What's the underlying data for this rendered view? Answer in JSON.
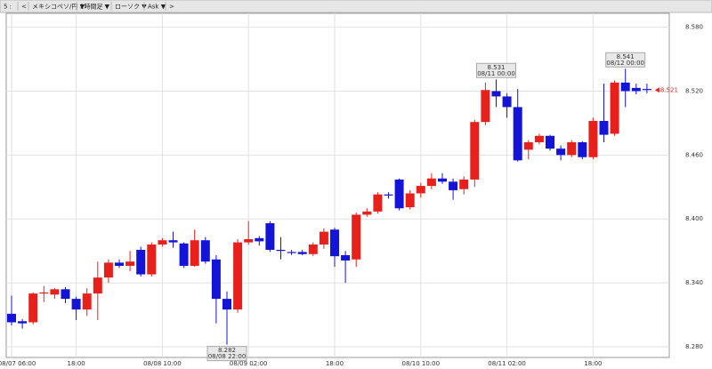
{
  "toolbar": [
    "5 :",
    "<",
    "メキシコペソ/円 ▼",
    "2時間足 ▼",
    "ローソク ▼",
    "Ask ▼",
    ">"
  ],
  "chart_data": {
    "type": "candlestick",
    "up_color": "#e8201c",
    "down_color": "#1414d8",
    "last_color": "#e8201c",
    "categories": [
      "08/07 06:00",
      null,
      null,
      null,
      null,
      null,
      "18:00",
      null,
      null,
      null,
      null,
      null,
      null,
      null,
      "08/08 10:00",
      null,
      null,
      null,
      null,
      null,
      null,
      null,
      "08/09 02:00",
      null,
      null,
      null,
      null,
      null,
      null,
      null,
      "18:00",
      null,
      null,
      null,
      null,
      null,
      null,
      null,
      "08/10 10:00",
      null,
      null,
      null,
      null,
      null,
      null,
      null,
      "08/11 02:00",
      null,
      null,
      null,
      null,
      null,
      null,
      null,
      "18:00",
      null,
      null,
      null,
      null,
      null
    ],
    "open": [
      8.311,
      8.304,
      8.303,
      8.33,
      8.329,
      8.334,
      8.325,
      8.315,
      8.33,
      8.345,
      8.359,
      8.356,
      8.371,
      8.348,
      8.376,
      8.38,
      8.377,
      8.356,
      8.38,
      8.362,
      8.325,
      8.315,
      8.378,
      8.382,
      8.396,
      8.371,
      8.369,
      8.369,
      8.367,
      8.376,
      8.39,
      8.366,
      8.362,
      8.404,
      8.407,
      8.423,
      8.437,
      8.411,
      8.424,
      8.431,
      8.438,
      8.435,
      8.428,
      8.437,
      8.491,
      8.52,
      8.515,
      8.505,
      8.465,
      8.472,
      8.478,
      8.466,
      8.46,
      8.472,
      8.458,
      8.492,
      8.48,
      8.528,
      8.523,
      8.522
    ],
    "high": [
      8.328,
      8.306,
      8.331,
      8.337,
      8.335,
      8.336,
      8.327,
      8.335,
      8.36,
      8.362,
      8.362,
      8.37,
      8.374,
      8.378,
      8.382,
      8.388,
      8.378,
      8.39,
      8.383,
      8.366,
      8.332,
      8.381,
      8.398,
      8.384,
      8.398,
      8.383,
      8.371,
      8.371,
      8.378,
      8.391,
      8.392,
      8.37,
      8.406,
      8.41,
      8.425,
      8.425,
      8.438,
      8.427,
      8.434,
      8.443,
      8.443,
      8.438,
      8.44,
      8.493,
      8.528,
      8.531,
      8.518,
      8.522,
      8.474,
      8.48,
      8.479,
      8.469,
      8.474,
      8.473,
      8.495,
      8.527,
      8.53,
      8.541,
      8.527,
      8.527
    ],
    "low": [
      8.3,
      8.297,
      8.301,
      8.322,
      8.325,
      8.321,
      8.305,
      8.309,
      8.305,
      8.34,
      8.354,
      8.351,
      8.346,
      8.346,
      8.374,
      8.373,
      8.354,
      8.355,
      8.358,
      8.302,
      8.282,
      8.312,
      8.376,
      8.375,
      8.369,
      8.362,
      8.366,
      8.366,
      8.365,
      8.372,
      8.355,
      8.34,
      8.355,
      8.402,
      8.405,
      8.419,
      8.408,
      8.409,
      8.42,
      8.428,
      8.433,
      8.418,
      8.423,
      8.43,
      8.488,
      8.505,
      8.495,
      8.454,
      8.456,
      8.47,
      8.464,
      8.455,
      8.458,
      8.456,
      8.456,
      8.472,
      8.478,
      8.505,
      8.517,
      8.518
    ],
    "close": [
      8.303,
      8.302,
      8.33,
      8.331,
      8.334,
      8.325,
      8.315,
      8.33,
      8.345,
      8.359,
      8.356,
      8.36,
      8.348,
      8.376,
      8.38,
      8.378,
      8.356,
      8.38,
      8.36,
      8.325,
      8.315,
      8.378,
      8.381,
      8.379,
      8.371,
      8.37,
      8.368,
      8.367,
      8.376,
      8.388,
      8.365,
      8.361,
      8.404,
      8.407,
      8.423,
      8.422,
      8.41,
      8.424,
      8.431,
      8.438,
      8.435,
      8.427,
      8.437,
      8.491,
      8.521,
      8.515,
      8.505,
      8.455,
      8.472,
      8.478,
      8.466,
      8.46,
      8.472,
      8.458,
      8.492,
      8.479,
      8.528,
      8.52,
      8.52,
      8.521
    ],
    "ylim": [
      8.27,
      8.593
    ],
    "yticks": [
      {
        "value": 8.28,
        "label": "8.280"
      },
      {
        "value": 8.34,
        "label": "8.340"
      },
      {
        "value": 8.4,
        "label": "8.400"
      },
      {
        "value": 8.46,
        "label": "8.460"
      },
      {
        "value": 8.52,
        "label": "8.520"
      },
      {
        "value": 8.58,
        "label": "8.580"
      }
    ],
    "grid": true,
    "annotations": [
      {
        "value": 8.282,
        "time": "08/08 22:00"
      },
      {
        "value": 8.531,
        "time": "08/11 00:00"
      },
      {
        "value": 8.541,
        "time": "08/12 00:00"
      }
    ]
  }
}
